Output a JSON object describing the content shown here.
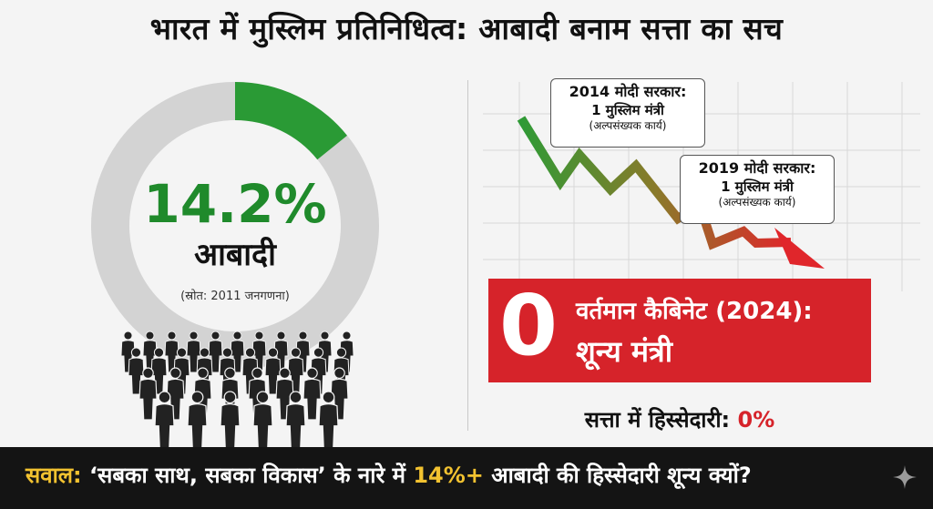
{
  "title": "भारत में मुस्लिम प्रतिनिधित्व: आबादी बनाम सत्ता का सच",
  "population": {
    "percent": "14.2%",
    "share_fraction": 0.142,
    "label": "आबादी",
    "source": "(स्रोत: 2011 जनगणना)"
  },
  "callouts": [
    {
      "line1": "2014 मोदी सरकार:",
      "line2": "1 मुस्लिम मंत्री",
      "line3": "(अल्पसंख्यक कार्य)"
    },
    {
      "line1": "2019 मोदी सरकार:",
      "line2": "1 मुस्लिम मंत्री",
      "line3": "(अल्पसंख्यक कार्य)"
    }
  ],
  "cabinet": {
    "zero": "0",
    "line1": "वर्तमान कैबिनेट (2024):",
    "line2": "शून्य मंत्री"
  },
  "power_share": {
    "label": "सत्ता में हिस्सेदारी:",
    "value": "0%"
  },
  "bottom": {
    "prefix": "सवाल:",
    "mid": "‘सबका साथ, सबका विकास’ के नारे में",
    "highlight": "14%+",
    "suffix": "आबादी की हिस्सेदारी शून्य क्यों?"
  },
  "colors": {
    "green": "#1f8a2b",
    "red": "#d6232a",
    "gray_ring": "#d3d3d3",
    "bar_dark": "#141414",
    "question_yellow": "#f2c230"
  },
  "icons": [
    "people-crowd-icon",
    "trend-down-arrow-icon",
    "sparkle-icon"
  ]
}
